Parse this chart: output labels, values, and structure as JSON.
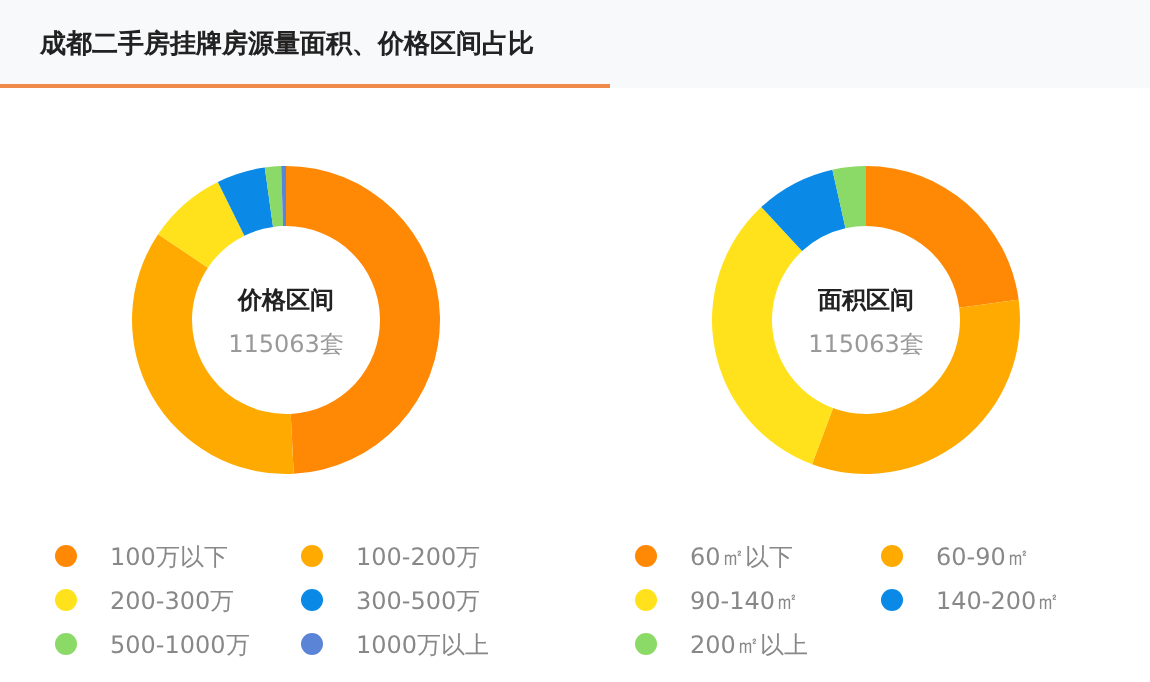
{
  "chart_data": [
    {
      "type": "donut",
      "title": "成都二手房挂牌房源量面积、价格区间占比",
      "annotations": [
        "价格区间",
        "115063套"
      ],
      "legend": "bottom",
      "categories": [
        "100万以下",
        "100-200万",
        "200-300万",
        "300-500万",
        "500-1000万",
        "1000万以上"
      ],
      "values": [
        49.2,
        35.2,
        8.3,
        5.1,
        1.7,
        0.5
      ],
      "colors": [
        "#ff8805",
        "#ffaa00",
        "#ffe21c",
        "#0a8ae6",
        "#8bd966",
        "#5b83d6"
      ]
    },
    {
      "type": "donut",
      "annotations": [
        "面积区间",
        "115063套"
      ],
      "legend": "bottom",
      "categories": [
        "60㎡以下",
        "60-90㎡",
        "90-140㎡",
        "140-200㎡",
        "200㎡以上"
      ],
      "values": [
        22.9,
        32.8,
        32.4,
        8.4,
        3.5
      ],
      "colors": [
        "#ff8805",
        "#ffaa00",
        "#ffe21c",
        "#0a8ae6",
        "#8bd966"
      ]
    }
  ]
}
